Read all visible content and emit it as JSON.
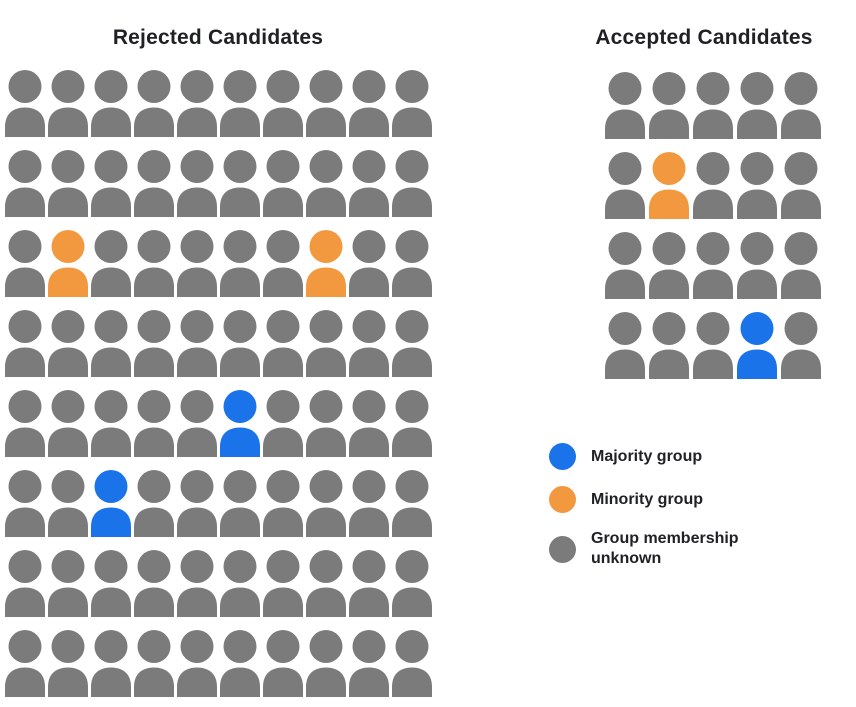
{
  "colors": {
    "majority": "#1a73e8",
    "minority": "#f2993f",
    "unknown": "#7b7b7b"
  },
  "charts": {
    "rejected": {
      "title": "Rejected Candidates",
      "rows": 8,
      "cols": 10,
      "default_group": "unknown",
      "special_cells": [
        {
          "row": 2,
          "col": 1,
          "group": "minority"
        },
        {
          "row": 2,
          "col": 7,
          "group": "minority"
        },
        {
          "row": 4,
          "col": 5,
          "group": "majority"
        },
        {
          "row": 5,
          "col": 2,
          "group": "majority"
        }
      ]
    },
    "accepted": {
      "title": "Accepted Candidates",
      "rows": 4,
      "cols": 5,
      "default_group": "unknown",
      "special_cells": [
        {
          "row": 1,
          "col": 1,
          "group": "minority"
        },
        {
          "row": 3,
          "col": 3,
          "group": "majority"
        }
      ]
    }
  },
  "legend": {
    "items": [
      {
        "group": "majority",
        "label": "Majority group"
      },
      {
        "group": "minority",
        "label": "Minority group"
      },
      {
        "group": "unknown",
        "label": "Group membership unknown"
      }
    ]
  },
  "chart_data": {
    "type": "pictogram",
    "charts": [
      {
        "title": "Rejected Candidates",
        "grid": "8 rows x 10 cols",
        "total": 80,
        "counts": {
          "majority": 2,
          "minority": 2,
          "unknown": 76
        },
        "colored_positions": [
          {
            "row": 3,
            "col": 2,
            "group": "minority"
          },
          {
            "row": 3,
            "col": 8,
            "group": "minority"
          },
          {
            "row": 5,
            "col": 6,
            "group": "majority"
          },
          {
            "row": 6,
            "col": 3,
            "group": "majority"
          }
        ]
      },
      {
        "title": "Accepted Candidates",
        "grid": "4 rows x 5 cols",
        "total": 20,
        "counts": {
          "majority": 1,
          "minority": 1,
          "unknown": 18
        },
        "colored_positions": [
          {
            "row": 2,
            "col": 2,
            "group": "minority"
          },
          {
            "row": 4,
            "col": 4,
            "group": "majority"
          }
        ]
      }
    ],
    "legend_entries": [
      "Majority group",
      "Minority group",
      "Group membership unknown"
    ],
    "legend_colors": {
      "Majority group": "#1a73e8",
      "Minority group": "#f2993f",
      "Group membership unknown": "#7b7b7b"
    },
    "legend_position": "right"
  }
}
